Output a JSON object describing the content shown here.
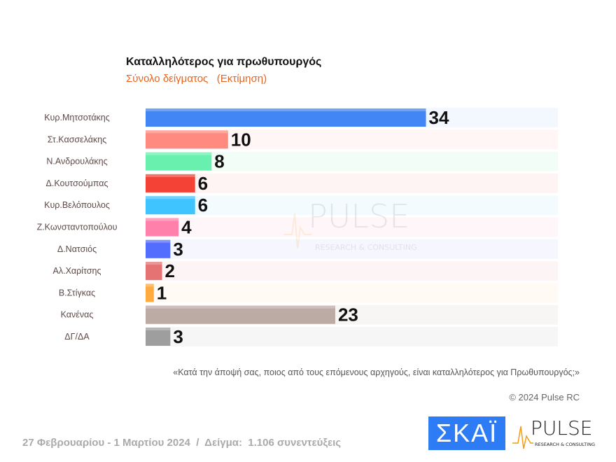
{
  "chart_data": {
    "type": "bar",
    "orientation": "horizontal",
    "title": "Καταλληλότερος για πρωθυπουργός",
    "subtitle": "Σύνολο δείγματος   (Εκτίμηση)",
    "categories": [
      "Κυρ.Μητσοτάκης",
      "Στ.Κασσελάκης",
      "Ν.Ανδρουλάκης",
      "Δ.Κουτσούμπας",
      "Κυρ.Βελόπουλος",
      "Ζ.Κωνσταντοπούλου",
      "Δ.Νατσιός",
      "Αλ.Χαρίτσης",
      "Β.Στίγκας",
      "Κανένας",
      "ΔΓ/ΔΑ"
    ],
    "values": [
      34,
      10,
      8,
      6,
      6,
      4,
      3,
      2,
      1,
      23,
      3
    ],
    "colors": [
      "#4285f4",
      "#ff8a80",
      "#69f0ae",
      "#f44336",
      "#40c4ff",
      "#ff80ab",
      "#536dfe",
      "#e57373",
      "#ffab40",
      "#bcaaa4",
      "#9e9e9e"
    ],
    "row_backgrounds": [
      "#f3f7fe",
      "#fff6f5",
      "#f3fdf7",
      "#fef4f3",
      "#f3fbff",
      "#fff6f9",
      "#f5f6fe",
      "#fdf5f5",
      "#fffaf4",
      "#f8f6f5",
      "#f6f6f6"
    ],
    "xlim": [
      0,
      50
    ],
    "data_labels": true,
    "grid": false
  },
  "question": "«Κατά την άποψή σας, ποιος από τους επόμενους αρχηγούς, είναι καταλληλότερος για Πρωθυπουργός;»",
  "copyright": "© 2024 Pulse RC",
  "footer": "27 Φεβρουαρίου - 1 Μαρτίου 2024  /  Δείγμα:  1.106 συνεντεύξεις",
  "logos": {
    "skai": "ΣΚΑΪ",
    "pulse": "PULSE",
    "pulse_tagline": "RESEARCH & CONSULTING"
  }
}
